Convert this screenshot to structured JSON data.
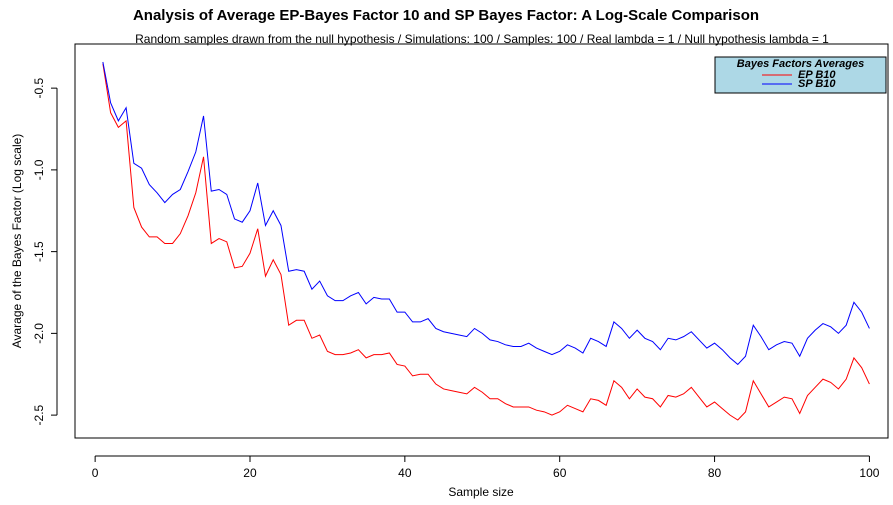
{
  "chart_data": {
    "type": "line",
    "title": "Analysis of Average EP-Bayes Factor 10 and SP Bayes Factor: A Log-Scale Comparison",
    "subtitle": "Random samples drawn from the null hypothesis / Simulations: 100 / Samples: 100 / Real lambda = 1 / Null hypothesis lambda = 1",
    "xlabel": "Sample size",
    "ylabel": "Avarage of the Bayes Factor (Log scale)",
    "legend_title": "Bayes Factors Averages",
    "legend_position": "topright",
    "x": [
      1,
      2,
      3,
      4,
      5,
      6,
      7,
      8,
      9,
      10,
      11,
      12,
      13,
      14,
      15,
      16,
      17,
      18,
      19,
      20,
      21,
      22,
      23,
      24,
      25,
      26,
      27,
      28,
      29,
      30,
      31,
      32,
      33,
      34,
      35,
      36,
      37,
      38,
      39,
      40,
      41,
      42,
      43,
      44,
      45,
      46,
      47,
      48,
      49,
      50,
      51,
      52,
      53,
      54,
      55,
      56,
      57,
      58,
      59,
      60,
      61,
      62,
      63,
      64,
      65,
      66,
      67,
      68,
      69,
      70,
      71,
      72,
      73,
      74,
      75,
      76,
      77,
      78,
      79,
      80,
      81,
      82,
      83,
      84,
      85,
      86,
      87,
      88,
      89,
      90,
      91,
      92,
      93,
      94,
      95,
      96,
      97,
      98,
      99,
      100
    ],
    "series": [
      {
        "name": "EP B10",
        "color": "#ff0000",
        "values": [
          -0.35,
          -0.65,
          -0.74,
          -0.7,
          -1.23,
          -1.35,
          -1.41,
          -1.41,
          -1.45,
          -1.45,
          -1.39,
          -1.28,
          -1.14,
          -0.92,
          -1.45,
          -1.42,
          -1.44,
          -1.6,
          -1.59,
          -1.51,
          -1.36,
          -1.65,
          -1.55,
          -1.64,
          -1.95,
          -1.92,
          -1.92,
          -2.03,
          -2.01,
          -2.11,
          -2.13,
          -2.13,
          -2.12,
          -2.1,
          -2.15,
          -2.13,
          -2.13,
          -2.12,
          -2.19,
          -2.2,
          -2.26,
          -2.25,
          -2.25,
          -2.31,
          -2.34,
          -2.35,
          -2.36,
          -2.37,
          -2.33,
          -2.36,
          -2.4,
          -2.4,
          -2.43,
          -2.45,
          -2.45,
          -2.45,
          -2.47,
          -2.48,
          -2.5,
          -2.48,
          -2.44,
          -2.46,
          -2.48,
          -2.4,
          -2.41,
          -2.44,
          -2.29,
          -2.33,
          -2.4,
          -2.34,
          -2.39,
          -2.4,
          -2.45,
          -2.38,
          -2.39,
          -2.37,
          -2.33,
          -2.39,
          -2.45,
          -2.42,
          -2.46,
          -2.5,
          -2.53,
          -2.48,
          -2.29,
          -2.37,
          -2.45,
          -2.42,
          -2.39,
          -2.4,
          -2.49,
          -2.38,
          -2.33,
          -2.28,
          -2.3,
          -2.34,
          -2.28,
          -2.15,
          -2.21,
          -2.31
        ]
      },
      {
        "name": "SP B10",
        "color": "#0000ff",
        "values": [
          -0.34,
          -0.59,
          -0.7,
          -0.62,
          -0.96,
          -0.99,
          -1.09,
          -1.14,
          -1.2,
          -1.15,
          -1.12,
          -1.01,
          -0.89,
          -0.67,
          -1.13,
          -1.12,
          -1.15,
          -1.3,
          -1.32,
          -1.25,
          -1.08,
          -1.34,
          -1.25,
          -1.34,
          -1.62,
          -1.61,
          -1.62,
          -1.73,
          -1.68,
          -1.77,
          -1.8,
          -1.8,
          -1.77,
          -1.75,
          -1.82,
          -1.78,
          -1.79,
          -1.79,
          -1.87,
          -1.87,
          -1.93,
          -1.93,
          -1.91,
          -1.97,
          -1.99,
          -2.0,
          -2.01,
          -2.02,
          -1.97,
          -2.0,
          -2.04,
          -2.05,
          -2.07,
          -2.08,
          -2.08,
          -2.06,
          -2.09,
          -2.11,
          -2.13,
          -2.11,
          -2.07,
          -2.09,
          -2.12,
          -2.03,
          -2.05,
          -2.08,
          -1.93,
          -1.97,
          -2.03,
          -1.98,
          -2.03,
          -2.05,
          -2.1,
          -2.03,
          -2.04,
          -2.02,
          -1.99,
          -2.04,
          -2.09,
          -2.06,
          -2.1,
          -2.15,
          -2.19,
          -2.14,
          -1.95,
          -2.02,
          -2.1,
          -2.07,
          -2.05,
          -2.06,
          -2.14,
          -2.03,
          -1.98,
          -1.94,
          -1.96,
          -2.0,
          -1.95,
          -1.81,
          -1.87,
          -1.97
        ]
      }
    ],
    "xlim": [
      -2.6,
      102.4
    ],
    "xticks": [
      0,
      20,
      40,
      60,
      80,
      100
    ],
    "ylim": [
      -2.64,
      -0.23
    ],
    "yticks": [
      -0.5,
      {
        "value": -1,
        "label": "-1.0"
      },
      -1.5,
      {
        "value": -2,
        "label": "-2.0"
      },
      -2.5
    ],
    "grid": false
  }
}
